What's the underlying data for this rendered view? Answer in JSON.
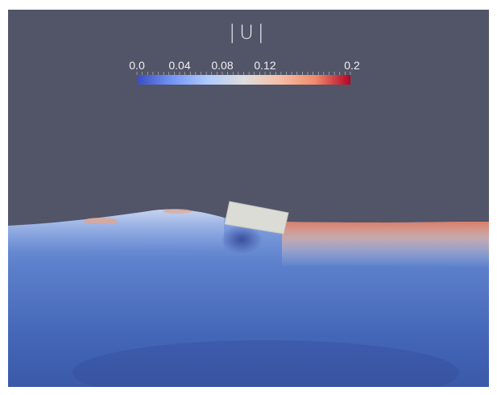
{
  "legend": {
    "title": "|U|",
    "tick_labels": [
      "0.0",
      "0.04",
      "0.08",
      "0.12",
      "0.2"
    ],
    "colormap": [
      "#3b4cc0",
      "#7396f5",
      "#b0cbfc",
      "#dddddd",
      "#f6bfa6",
      "#f08b6e",
      "#b40426"
    ]
  },
  "colors": {
    "background": "#525468",
    "water_deep": "#3e5fb0",
    "water_mid": "#5a7dc8",
    "surface_hot": "#d9866b",
    "block": "#dcdcd6"
  }
}
